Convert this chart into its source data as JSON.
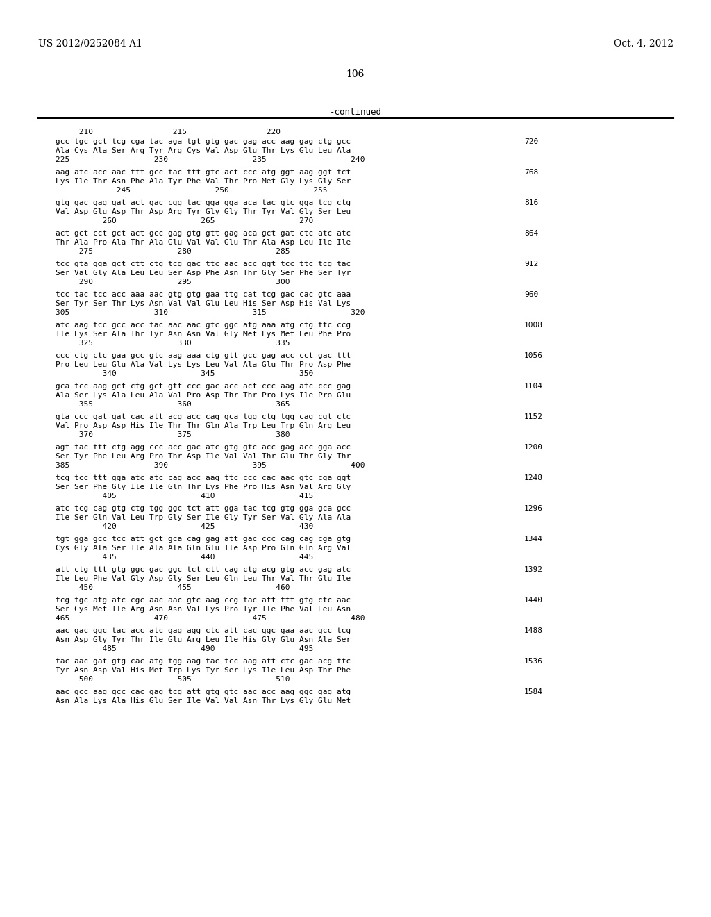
{
  "header_left": "US 2012/0252084 A1",
  "header_right": "Oct. 4, 2012",
  "page_number": "106",
  "continued_label": "-continued",
  "background_color": "#ffffff",
  "text_color": "#000000",
  "sequence_blocks": [
    {
      "ruler": "     210                 215                 220",
      "dna": "gcc tgc gct tcg cga tac aga tgt gtg gac gag acc aag gag ctg gcc",
      "aa": "Ala Cys Ala Ser Arg Tyr Arg Cys Val Asp Glu Thr Lys Glu Leu Ala",
      "nums": "225                  230                  235                  240",
      "rnum": "720"
    },
    {
      "ruler": "",
      "dna": "aag atc acc aac ttt gcc tac ttt gtc act ccc atg ggt aag ggt tct",
      "aa": "Lys Ile Thr Asn Phe Ala Tyr Phe Val Thr Pro Met Gly Lys Gly Ser",
      "nums": "             245                  250                  255",
      "rnum": "768"
    },
    {
      "ruler": "",
      "dna": "gtg gac gag gat act gac cgg tac gga gga aca tac gtc gga tcg ctg",
      "aa": "Val Asp Glu Asp Thr Asp Arg Tyr Gly Gly Thr Tyr Val Gly Ser Leu",
      "nums": "          260                  265                  270",
      "rnum": "816"
    },
    {
      "ruler": "",
      "dna": "act gct cct gct act gcc gag gtg gtt gag aca gct gat ctc atc atc",
      "aa": "Thr Ala Pro Ala Thr Ala Glu Val Val Glu Thr Ala Asp Leu Ile Ile",
      "nums": "     275                  280                  285",
      "rnum": "864"
    },
    {
      "ruler": "",
      "dna": "tcc gta gga gct ctt ctg tcg gac ttc aac acc ggt tcc ttc tcg tac",
      "aa": "Ser Val Gly Ala Leu Leu Ser Asp Phe Asn Thr Gly Ser Phe Ser Tyr",
      "nums": "     290                  295                  300",
      "rnum": "912"
    },
    {
      "ruler": "",
      "dna": "tcc tac tcc acc aaa aac gtg gtg gaa ttg cat tcg gac cac gtc aaa",
      "aa": "Ser Tyr Ser Thr Lys Asn Val Val Glu Leu His Ser Asp His Val Lys",
      "nums": "305                  310                  315                  320",
      "rnum": "960"
    },
    {
      "ruler": "",
      "dna": "atc aag tcc gcc acc tac aac aac gtc ggc atg aaa atg ctg ttc ccg",
      "aa": "Ile Lys Ser Ala Thr Tyr Asn Asn Val Gly Met Lys Met Leu Phe Pro",
      "nums": "     325                  330                  335",
      "rnum": "1008"
    },
    {
      "ruler": "",
      "dna": "ccc ctg ctc gaa gcc gtc aag aaa ctg gtt gcc gag acc cct gac ttt",
      "aa": "Pro Leu Leu Glu Ala Val Lys Lys Leu Val Ala Glu Thr Pro Asp Phe",
      "nums": "          340                  345                  350",
      "rnum": "1056"
    },
    {
      "ruler": "",
      "dna": "gca tcc aag gct ctg gct gtt ccc gac acc act ccc aag atc ccc gag",
      "aa": "Ala Ser Lys Ala Leu Ala Val Pro Asp Thr Thr Pro Lys Ile Pro Glu",
      "nums": "     355                  360                  365",
      "rnum": "1104"
    },
    {
      "ruler": "",
      "dna": "gta ccc gat gat cac att acg acc cag gca tgg ctg tgg cag cgt ctc",
      "aa": "Val Pro Asp Asp His Ile Thr Thr Gln Ala Trp Leu Trp Gln Arg Leu",
      "nums": "     370                  375                  380",
      "rnum": "1152"
    },
    {
      "ruler": "",
      "dna": "agt tac ttt ctg agg ccc acc gac atc gtg gtc acc gag acc gga acc",
      "aa": "Ser Tyr Phe Leu Arg Pro Thr Asp Ile Val Val Thr Glu Thr Gly Thr",
      "nums": "385                  390                  395                  400",
      "rnum": "1200"
    },
    {
      "ruler": "",
      "dna": "tcg tcc ttt gga atc atc cag acc aag ttc ccc cac aac gtc cga ggt",
      "aa": "Ser Ser Phe Gly Ile Ile Gln Thr Lys Phe Pro His Asn Val Arg Gly",
      "nums": "          405                  410                  415",
      "rnum": "1248"
    },
    {
      "ruler": "",
      "dna": "atc tcg cag gtg ctg tgg ggc tct att gga tac tcg gtg gga gca gcc",
      "aa": "Ile Ser Gln Val Leu Trp Gly Ser Ile Gly Tyr Ser Val Gly Ala Ala",
      "nums": "          420                  425                  430",
      "rnum": "1296"
    },
    {
      "ruler": "",
      "dna": "tgt gga gcc tcc att gct gca cag gag att gac ccc cag cag cga gtg",
      "aa": "Cys Gly Ala Ser Ile Ala Ala Gln Glu Ile Asp Pro Gln Gln Arg Val",
      "nums": "          435                  440                  445",
      "rnum": "1344"
    },
    {
      "ruler": "",
      "dna": "att ctg ttt gtg ggc gac ggc tct ctt cag ctg acg gtg acc gag atc",
      "aa": "Ile Leu Phe Val Gly Asp Gly Ser Leu Gln Leu Thr Val Thr Glu Ile",
      "nums": "     450                  455                  460",
      "rnum": "1392"
    },
    {
      "ruler": "",
      "dna": "tcg tgc atg atc cgc aac aac gtc aag ccg tac att ttt gtg ctc aac",
      "aa": "Ser Cys Met Ile Arg Asn Asn Val Lys Pro Tyr Ile Phe Val Leu Asn",
      "nums": "465                  470                  475                  480",
      "rnum": "1440"
    },
    {
      "ruler": "",
      "dna": "aac gac ggc tac acc atc gag agg ctc att cac ggc gaa aac gcc tcg",
      "aa": "Asn Asp Gly Tyr Thr Ile Glu Arg Leu Ile His Gly Glu Asn Ala Ser",
      "nums": "          485                  490                  495",
      "rnum": "1488"
    },
    {
      "ruler": "",
      "dna": "tac aac gat gtg cac atg tgg aag tac tcc aag att ctc gac acg ttc",
      "aa": "Tyr Asn Asp Val His Met Trp Lys Tyr Ser Lys Ile Leu Asp Thr Phe",
      "nums": "     500                  505                  510",
      "rnum": "1536"
    },
    {
      "ruler": "",
      "dna": "aac gcc aag gcc cac gag tcg att gtg gtc aac acc aag ggc gag atg",
      "aa": "Asn Ala Lys Ala His Glu Ser Ile Val Val Asn Thr Lys Gly Glu Met",
      "nums": "",
      "rnum": "1584"
    }
  ]
}
